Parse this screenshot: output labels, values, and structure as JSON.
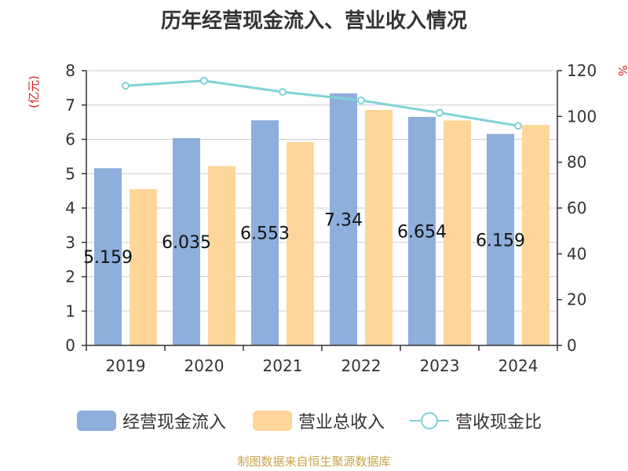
{
  "chart_data": {
    "type": "bar",
    "title": "历年经营现金流入、营业收入情况",
    "categories": [
      "2019",
      "2020",
      "2021",
      "2022",
      "2023",
      "2024"
    ],
    "series": [
      {
        "name": "经营现金流入",
        "type": "bar",
        "axis": "left",
        "color": "#8eaedb",
        "values": [
          5.159,
          6.035,
          6.553,
          7.34,
          6.654,
          6.159
        ]
      },
      {
        "name": "营业总收入",
        "type": "bar",
        "axis": "left",
        "color": "#ffd699",
        "values": [
          4.55,
          5.22,
          5.92,
          6.86,
          6.55,
          6.42
        ]
      },
      {
        "name": "营收现金比",
        "type": "line",
        "axis": "right",
        "color": "#7fd3d6",
        "values": [
          113.4,
          115.6,
          110.7,
          107.0,
          101.6,
          95.9
        ]
      }
    ],
    "data_labels": [
      "5.159",
      "6.035",
      "6.553",
      "7.34",
      "6.654",
      "6.159"
    ],
    "ylabel": "(亿元)",
    "y2label": "%",
    "ylim": [
      0,
      8
    ],
    "y2lim": [
      0,
      120
    ],
    "yticks": [
      "0",
      "1",
      "2",
      "3",
      "4",
      "5",
      "6",
      "7",
      "8"
    ],
    "y2ticks": [
      "0",
      "20",
      "40",
      "60",
      "80",
      "100",
      "120"
    ],
    "grid": true,
    "legend_position": "bottom"
  },
  "legend": [
    {
      "label": "经营现金流入",
      "kind": "bar",
      "color": "#8eaedb"
    },
    {
      "label": "营业总收入",
      "kind": "bar",
      "color": "#ffd699"
    },
    {
      "label": "营收现金比",
      "kind": "line",
      "color": "#7fd3d6"
    }
  ],
  "source": "制图数据来自恒生聚源数据库"
}
